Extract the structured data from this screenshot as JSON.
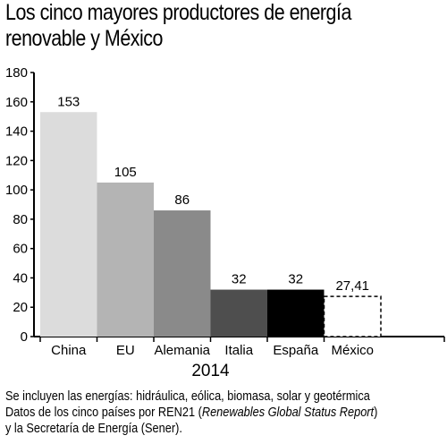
{
  "chart_data": {
    "type": "bar",
    "title_lines": [
      "Los cinco mayores productores de energía",
      "renovable y México"
    ],
    "categories": [
      "China",
      "EU",
      "Alemania",
      "Italia",
      "España",
      "México"
    ],
    "values": [
      153,
      105,
      86,
      32,
      32,
      27.41
    ],
    "value_labels": [
      "153",
      "105",
      "86",
      "32",
      "32",
      "27,41"
    ],
    "bar_colors": [
      "#dcdcdc",
      "#b4b4b4",
      "#8a8a8a",
      "#4e4e4e",
      "#000000",
      "#ffffff"
    ],
    "highlight_dashed": "México",
    "xlabel": "2014",
    "ylabel": "",
    "ylim": [
      0,
      180
    ],
    "yticks": [
      "0",
      "20",
      "40",
      "60",
      "80",
      "100",
      "120",
      "140",
      "160",
      "180"
    ],
    "grid": false,
    "legend": "none"
  },
  "notes": {
    "line1": "Se incluyen las energías: hidráulica, eólica, biomasa, solar y geotérmica",
    "line2_pre": "Datos de los cinco países por REN21 (",
    "line2_italic": "Renewables Global Status Report",
    "line2_post": ")",
    "line3": "y la Secretaría de Energía (Sener)."
  }
}
